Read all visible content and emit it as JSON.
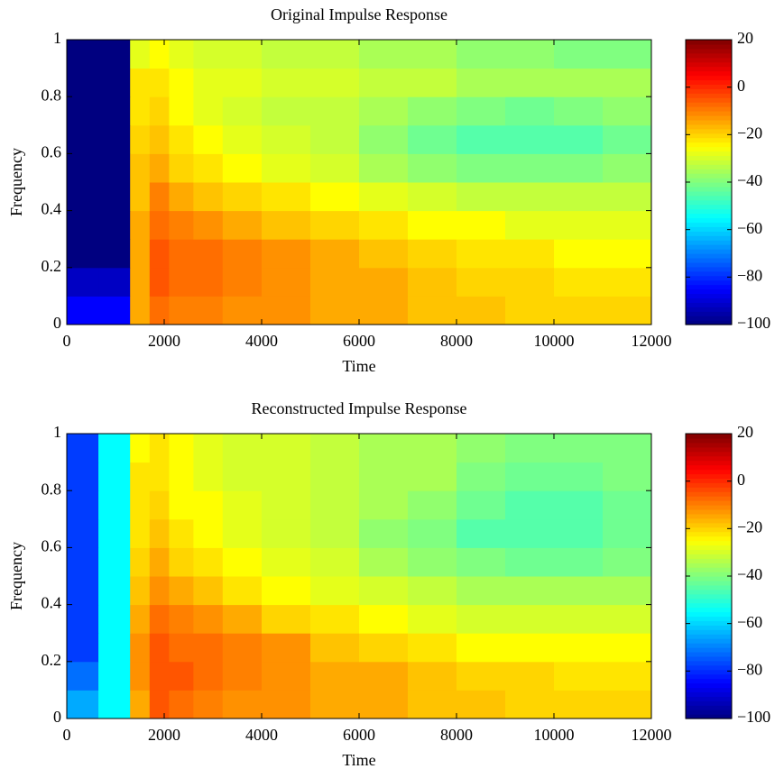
{
  "chart_data": [
    {
      "type": "heatmap",
      "title": "Original Impulse Response",
      "xlabel": "Time",
      "ylabel": "Frequency",
      "colormap": "jet",
      "x_edges": [
        0,
        650,
        1300,
        1700,
        2100,
        2600,
        3200,
        4000,
        5000,
        6000,
        7000,
        8000,
        9000,
        10000,
        11000,
        12000
      ],
      "y_edges": [
        0,
        0.1,
        0.2,
        0.3,
        0.4,
        0.5,
        0.6,
        0.7,
        0.8,
        0.9,
        1
      ],
      "values": [
        [
          -85,
          -85,
          -15,
          -8,
          -10,
          -10,
          -12,
          -12,
          -15,
          -15,
          -18,
          -18,
          -20,
          -20,
          -20
        ],
        [
          -92,
          -92,
          -15,
          -5,
          -8,
          -8,
          -10,
          -12,
          -15,
          -15,
          -18,
          -20,
          -20,
          -22,
          -22
        ],
        [
          -100,
          -100,
          -15,
          -5,
          -8,
          -8,
          -10,
          -12,
          -15,
          -18,
          -20,
          -22,
          -22,
          -25,
          -25
        ],
        [
          -100,
          -100,
          -15,
          -8,
          -10,
          -12,
          -15,
          -18,
          -20,
          -22,
          -25,
          -25,
          -28,
          -28,
          -28
        ],
        [
          -100,
          -100,
          -18,
          -10,
          -15,
          -18,
          -20,
          -22,
          -25,
          -28,
          -30,
          -32,
          -32,
          -32,
          -32
        ],
        [
          -100,
          -100,
          -18,
          -15,
          -20,
          -22,
          -25,
          -28,
          -30,
          -35,
          -38,
          -40,
          -40,
          -40,
          -38
        ],
        [
          -100,
          -100,
          -20,
          -18,
          -22,
          -25,
          -28,
          -30,
          -32,
          -38,
          -42,
          -45,
          -45,
          -45,
          -42
        ],
        [
          -100,
          -100,
          -22,
          -20,
          -25,
          -28,
          -30,
          -32,
          -32,
          -35,
          -38,
          -40,
          -42,
          -40,
          -38
        ],
        [
          -100,
          -100,
          -22,
          -22,
          -25,
          -28,
          -28,
          -30,
          -30,
          -32,
          -32,
          -35,
          -35,
          -35,
          -35
        ],
        [
          -100,
          -100,
          -28,
          -25,
          -28,
          -30,
          -30,
          -32,
          -32,
          -35,
          -35,
          -38,
          -38,
          -40,
          -40
        ]
      ],
      "xlim": [
        0,
        12000
      ],
      "xticks": [
        0,
        2000,
        4000,
        6000,
        8000,
        10000,
        12000
      ],
      "ylim": [
        0,
        1
      ],
      "yticks": [
        0,
        0.2,
        0.4,
        0.6,
        0.8,
        1
      ],
      "clim": [
        -100,
        20
      ],
      "cticks": [
        {
          "value": -100,
          "label": "−100"
        },
        {
          "value": -80,
          "label": "−80"
        },
        {
          "value": -60,
          "label": "−60"
        },
        {
          "value": -40,
          "label": "−40"
        },
        {
          "value": -20,
          "label": "−20"
        },
        0,
        20
      ]
    },
    {
      "type": "heatmap",
      "title": "Reconstructed Impulse Response",
      "xlabel": "Time",
      "ylabel": "Frequency",
      "colormap": "jet",
      "x_edges": [
        0,
        650,
        1300,
        1700,
        2100,
        2600,
        3200,
        4000,
        5000,
        6000,
        7000,
        8000,
        9000,
        10000,
        11000,
        12000
      ],
      "y_edges": [
        0,
        0.1,
        0.2,
        0.3,
        0.4,
        0.5,
        0.6,
        0.7,
        0.8,
        0.9,
        1
      ],
      "values": [
        [
          -65,
          -55,
          -15,
          -5,
          -8,
          -10,
          -12,
          -12,
          -15,
          -15,
          -18,
          -18,
          -20,
          -20,
          -20
        ],
        [
          -72,
          -55,
          -12,
          -5,
          -5,
          -8,
          -10,
          -12,
          -15,
          -15,
          -18,
          -20,
          -20,
          -22,
          -22
        ],
        [
          -78,
          -55,
          -12,
          -5,
          -8,
          -8,
          -10,
          -12,
          -18,
          -20,
          -22,
          -25,
          -25,
          -25,
          -25
        ],
        [
          -78,
          -55,
          -15,
          -8,
          -10,
          -12,
          -15,
          -20,
          -22,
          -25,
          -28,
          -30,
          -30,
          -30,
          -30
        ],
        [
          -78,
          -55,
          -18,
          -12,
          -15,
          -18,
          -22,
          -25,
          -28,
          -30,
          -32,
          -35,
          -35,
          -35,
          -35
        ],
        [
          -78,
          -55,
          -20,
          -15,
          -20,
          -22,
          -25,
          -28,
          -30,
          -35,
          -38,
          -40,
          -42,
          -42,
          -40
        ],
        [
          -78,
          -55,
          -22,
          -18,
          -22,
          -25,
          -28,
          -30,
          -32,
          -38,
          -40,
          -45,
          -45,
          -45,
          -42
        ],
        [
          -78,
          -55,
          -22,
          -20,
          -25,
          -25,
          -28,
          -30,
          -32,
          -35,
          -38,
          -42,
          -45,
          -45,
          -42
        ],
        [
          -78,
          -55,
          -22,
          -22,
          -25,
          -28,
          -30,
          -30,
          -32,
          -35,
          -35,
          -40,
          -42,
          -42,
          -40
        ],
        [
          -78,
          -55,
          -25,
          -22,
          -25,
          -28,
          -30,
          -30,
          -32,
          -35,
          -35,
          -38,
          -40,
          -40,
          -40
        ]
      ],
      "xlim": [
        0,
        12000
      ],
      "xticks": [
        0,
        2000,
        4000,
        6000,
        8000,
        10000,
        12000
      ],
      "ylim": [
        0,
        1
      ],
      "yticks": [
        0,
        0.2,
        0.4,
        0.6,
        0.8,
        1
      ],
      "clim": [
        -100,
        20
      ],
      "cticks": [
        {
          "value": -100,
          "label": "−100"
        },
        {
          "value": -80,
          "label": "−80"
        },
        {
          "value": -60,
          "label": "−60"
        },
        {
          "value": -40,
          "label": "−40"
        },
        {
          "value": -20,
          "label": "−20"
        },
        0,
        20
      ]
    }
  ]
}
